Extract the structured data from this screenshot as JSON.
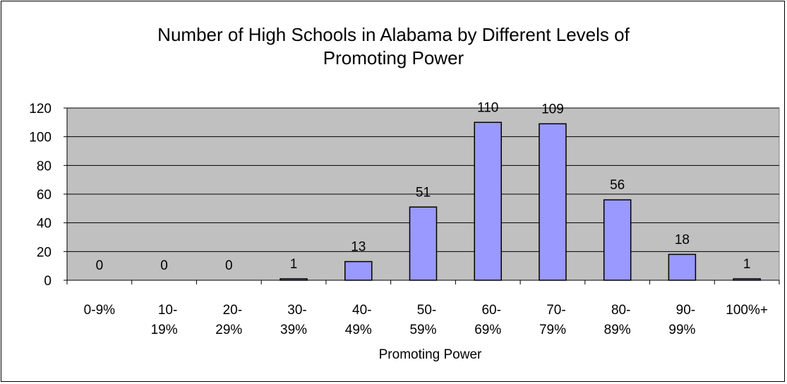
{
  "chart_data": {
    "type": "bar",
    "title_lines": [
      "Number of High Schools in Alabama by Different Levels of",
      "Promoting Power"
    ],
    "xlabel": "Promoting Power",
    "ylabel": "",
    "ylim": [
      0,
      120
    ],
    "yticks": [
      0,
      20,
      40,
      60,
      80,
      100,
      120
    ],
    "categories": [
      "0-9%",
      "10-19%",
      "20-29%",
      "30-39%",
      "40-49%",
      "50-59%",
      "60-69%",
      "70-79%",
      "80-89%",
      "90-99%",
      "100%+"
    ],
    "category_label_lines": [
      [
        "0-9%"
      ],
      [
        "10-",
        "19%"
      ],
      [
        "20-",
        "29%"
      ],
      [
        "30-",
        "39%"
      ],
      [
        "40-",
        "49%"
      ],
      [
        "50-",
        "59%"
      ],
      [
        "60-",
        "69%"
      ],
      [
        "70-",
        "79%"
      ],
      [
        "80-",
        "89%"
      ],
      [
        "90-",
        "99%"
      ],
      [
        "100%+"
      ]
    ],
    "values": [
      0,
      0,
      0,
      1,
      13,
      51,
      110,
      109,
      56,
      18,
      1
    ],
    "data_labels": [
      "0",
      "0",
      "0",
      "1",
      "13",
      "51",
      "110",
      "109",
      "56",
      "18",
      "1"
    ],
    "grid": true,
    "legend": "none",
    "colors": {
      "bar": "#9999ff",
      "plot_bg": "#c0c0c0",
      "edge": "#000000"
    }
  }
}
